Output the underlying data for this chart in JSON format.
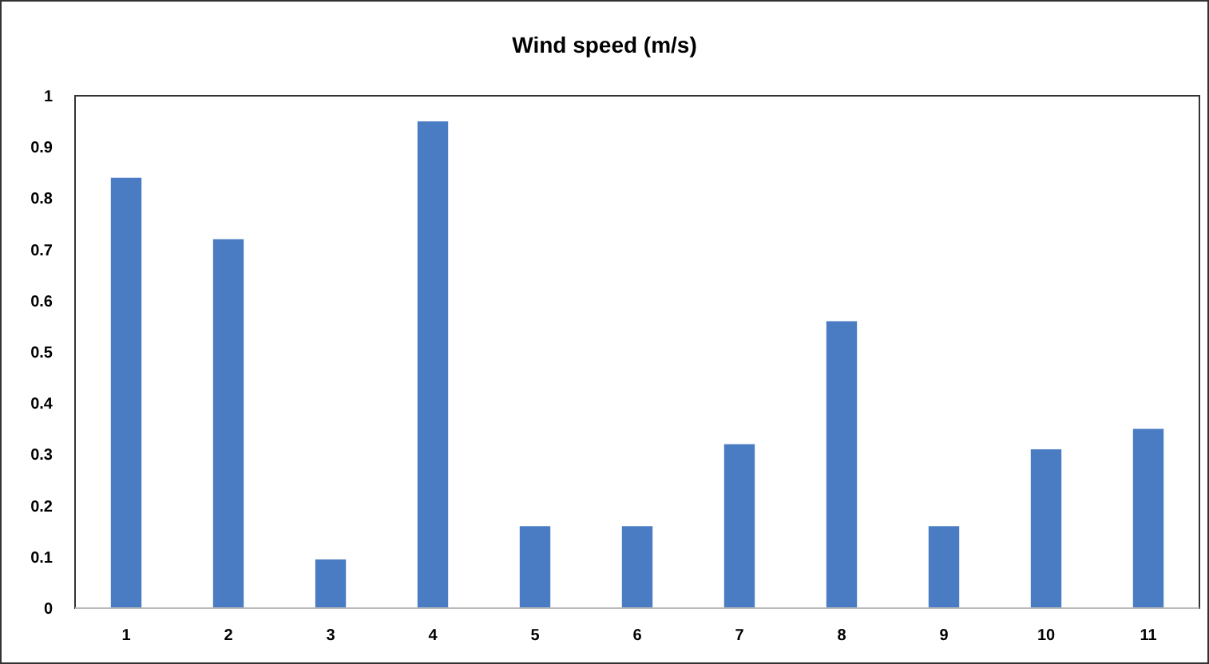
{
  "chart_data": {
    "type": "bar",
    "title": "Wind speed (m/s)",
    "categories": [
      "1",
      "2",
      "3",
      "4",
      "5",
      "6",
      "7",
      "8",
      "9",
      "10",
      "11"
    ],
    "values": [
      0.84,
      0.72,
      0.095,
      0.95,
      0.16,
      0.16,
      0.32,
      0.56,
      0.16,
      0.31,
      0.35
    ],
    "color": "#4a7cc4",
    "ylim": [
      0,
      1
    ],
    "yticks": [
      0,
      0.1,
      0.2,
      0.3,
      0.4,
      0.5,
      0.6,
      0.7,
      0.8,
      0.9,
      1
    ],
    "grid": false
  }
}
